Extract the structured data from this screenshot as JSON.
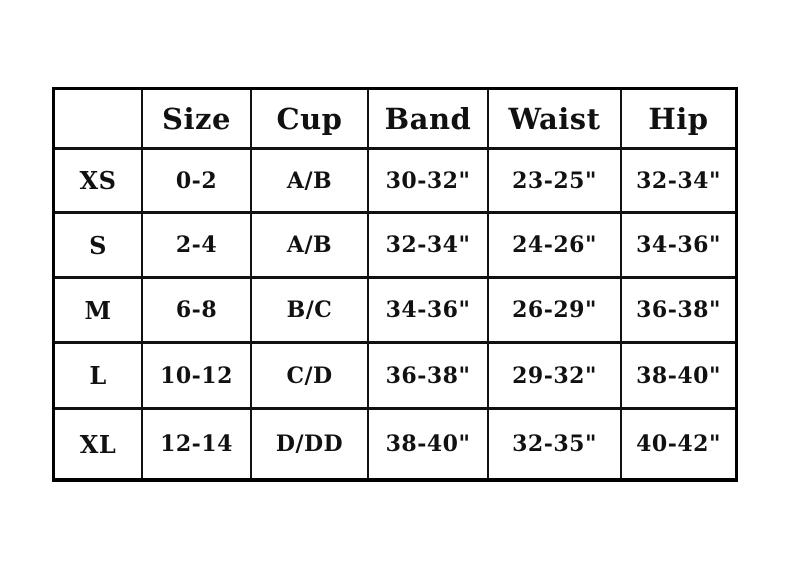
{
  "table": {
    "headers": [
      "",
      "Size",
      "Cup",
      "Band",
      "Waist",
      "Hip"
    ],
    "rows": [
      [
        "XS",
        "0-2",
        "A/B",
        "30-32\"",
        "23-25\"",
        "32-34\""
      ],
      [
        "S",
        "2-4",
        "A/B",
        "32-34\"",
        "24-26\"",
        "34-36\""
      ],
      [
        "M",
        "6-8",
        "B/C",
        "34-36\"",
        "26-29\"",
        "36-38\""
      ],
      [
        "L",
        "10-12",
        "C/D",
        "36-38\"",
        "29-32\"",
        "38-40\""
      ],
      [
        "XL",
        "12-14",
        "D/DD",
        "38-40\"",
        "32-35\"",
        "40-42\""
      ]
    ]
  }
}
